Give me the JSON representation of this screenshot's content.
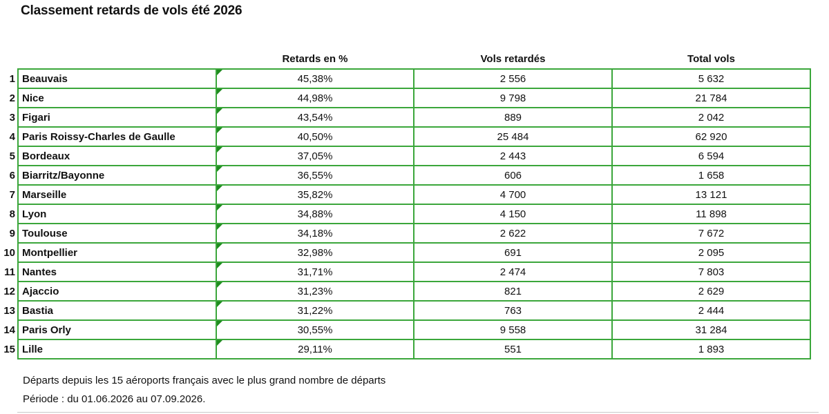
{
  "title": "Classement retards de vols été 2026",
  "headers": {
    "pct": "Retards en %",
    "delayed": "Vols retardés",
    "total": "Total vols"
  },
  "rows": [
    {
      "rank": "1",
      "name": "Beauvais",
      "pct": "45,38%",
      "delayed": "2 556",
      "total": "5 632"
    },
    {
      "rank": "2",
      "name": "Nice",
      "pct": "44,98%",
      "delayed": "9 798",
      "total": "21 784"
    },
    {
      "rank": "3",
      "name": "Figari",
      "pct": "43,54%",
      "delayed": "889",
      "total": "2 042"
    },
    {
      "rank": "4",
      "name": "Paris Roissy-Charles de Gaulle",
      "pct": "40,50%",
      "delayed": "25 484",
      "total": "62 920"
    },
    {
      "rank": "5",
      "name": "Bordeaux",
      "pct": "37,05%",
      "delayed": "2 443",
      "total": "6 594"
    },
    {
      "rank": "6",
      "name": "Biarritz/Bayonne",
      "pct": "36,55%",
      "delayed": "606",
      "total": "1 658"
    },
    {
      "rank": "7",
      "name": "Marseille",
      "pct": "35,82%",
      "delayed": "4 700",
      "total": "13 121"
    },
    {
      "rank": "8",
      "name": "Lyon",
      "pct": "34,88%",
      "delayed": "4 150",
      "total": "11 898"
    },
    {
      "rank": "9",
      "name": "Toulouse",
      "pct": "34,18%",
      "delayed": "2 622",
      "total": "7 672"
    },
    {
      "rank": "10",
      "name": "Montpellier",
      "pct": "32,98%",
      "delayed": "691",
      "total": "2 095"
    },
    {
      "rank": "11",
      "name": "Nantes",
      "pct": "31,71%",
      "delayed": "2 474",
      "total": "7 803"
    },
    {
      "rank": "12",
      "name": "Ajaccio",
      "pct": "31,23%",
      "delayed": "821",
      "total": "2 629"
    },
    {
      "rank": "13",
      "name": "Bastia",
      "pct": "31,22%",
      "delayed": "763",
      "total": "2 444"
    },
    {
      "rank": "14",
      "name": "Paris Orly",
      "pct": "30,55%",
      "delayed": "9 558",
      "total": "31 284"
    },
    {
      "rank": "15",
      "name": "Lille",
      "pct": "29,11%",
      "delayed": "551",
      "total": "1 893"
    }
  ],
  "notes": {
    "line1": "Départs depuis les 15 aéroports français avec le plus grand nombre de départs",
    "line2": "Période : du 01.06.2026 au 07.09.2026."
  },
  "colors": {
    "border": "#3aa63a",
    "marker": "#1f8b1f"
  }
}
